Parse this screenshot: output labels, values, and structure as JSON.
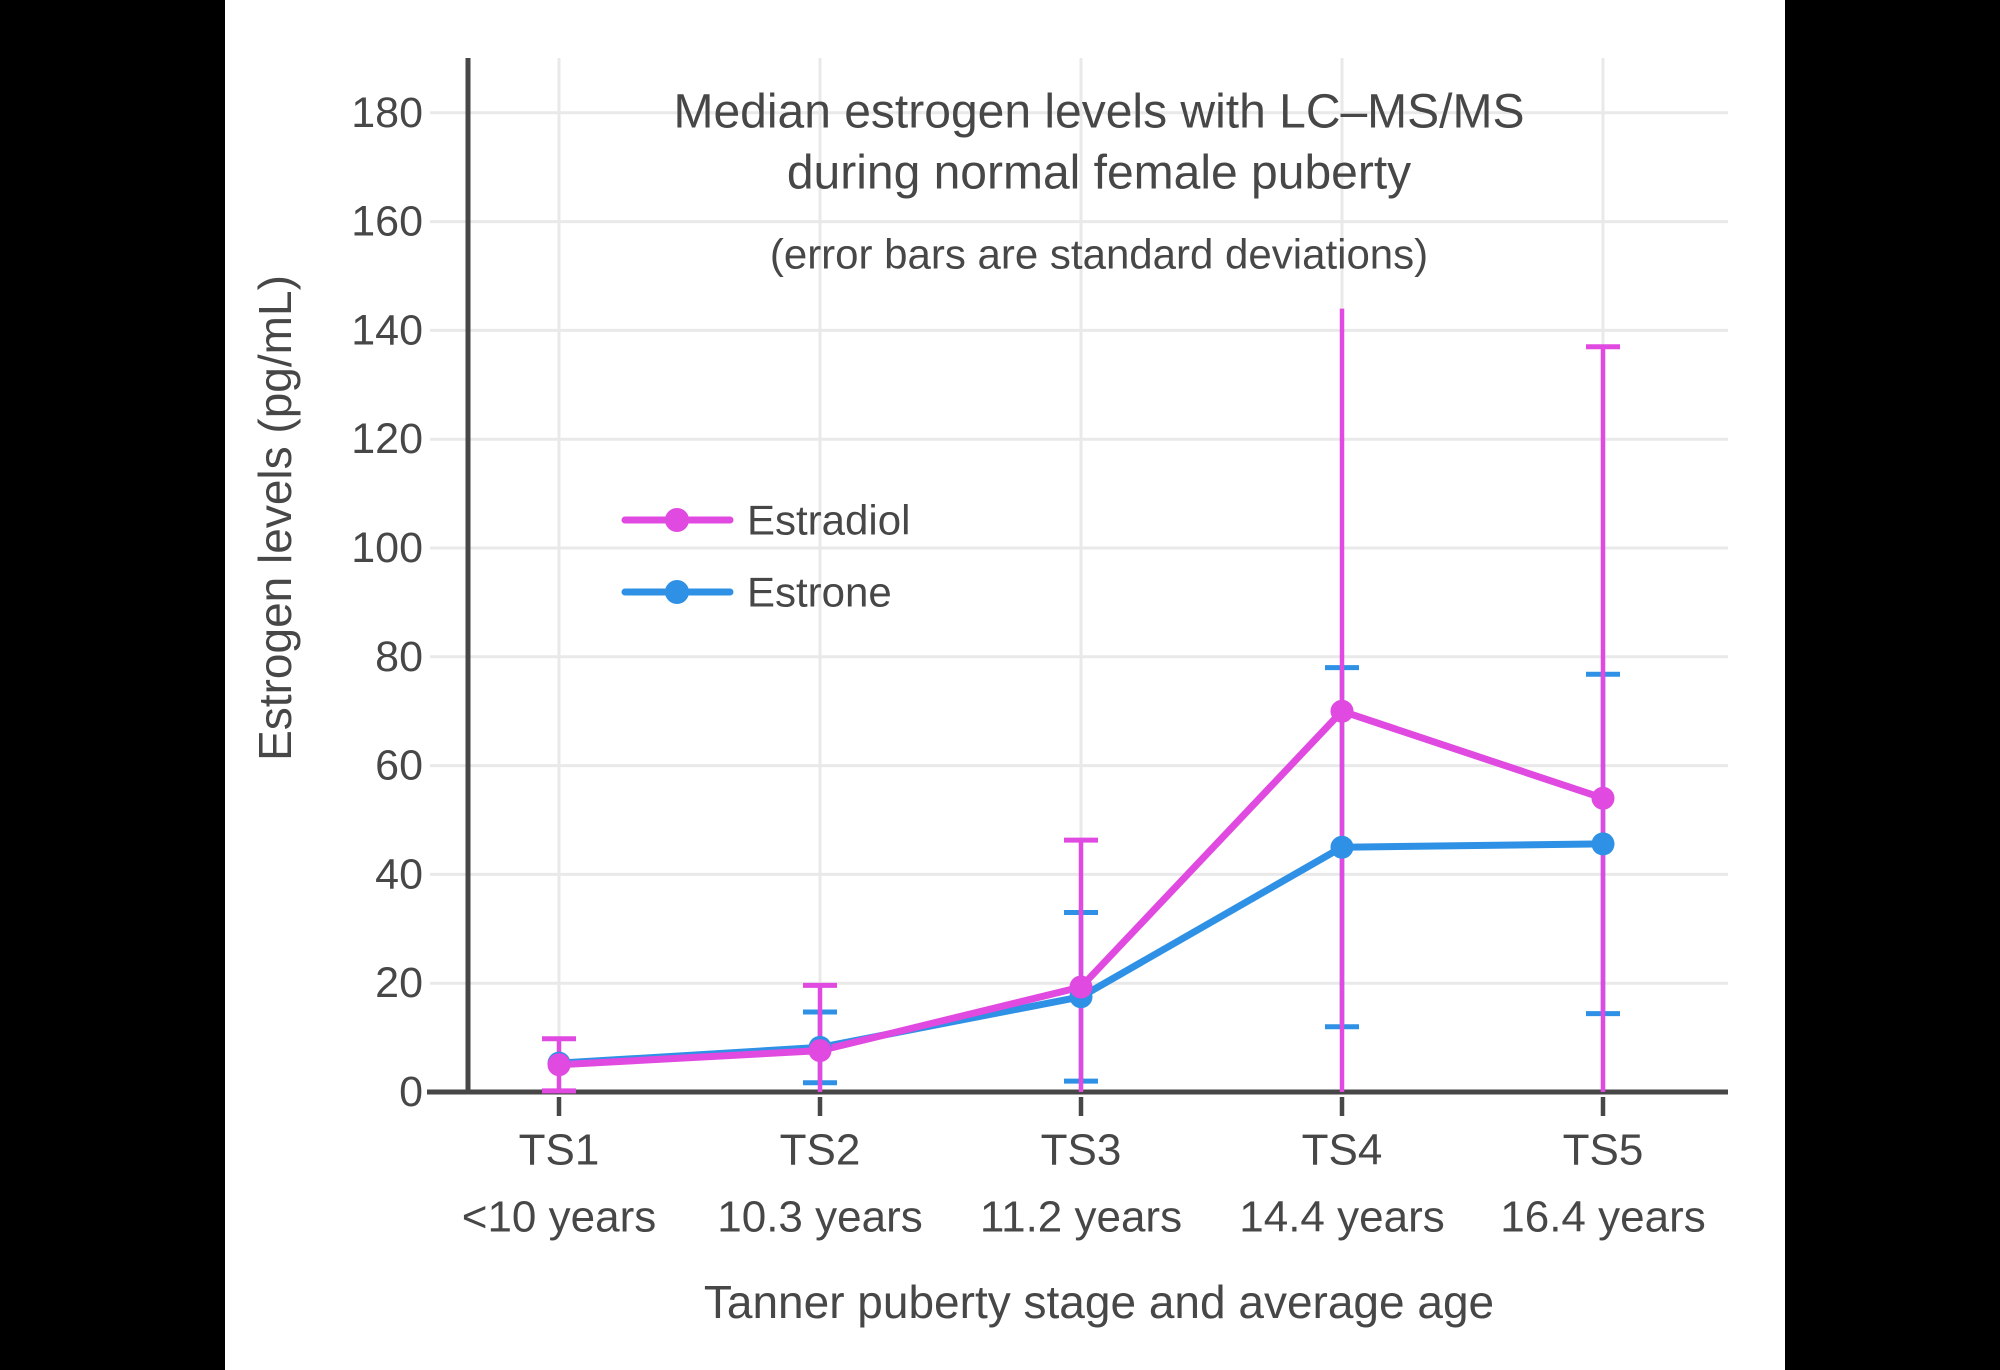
{
  "figure": {
    "background": "#ffffff",
    "letterbox_color": "#000000",
    "text_color": "#474747",
    "grid_color": "#e9e9e9",
    "axis_color": "#474747"
  },
  "chart_data": {
    "type": "line",
    "title_lines": [
      "Median estrogen levels with LC–MS/MS",
      "during normal female puberty"
    ],
    "subtitle": "(error bars are standard deviations)",
    "xlabel": "Tanner puberty stage and average age",
    "ylabel": "Estrogen levels (pg/mL)",
    "categories": [
      "TS1",
      "TS2",
      "TS3",
      "TS4",
      "TS5"
    ],
    "category_ages": [
      "<10 years",
      "10.3 years",
      "11.2 years",
      "14.4 years",
      "16.4 years"
    ],
    "ylim": [
      0,
      190
    ],
    "yticks": [
      0,
      20,
      40,
      60,
      80,
      100,
      120,
      140,
      160,
      180
    ],
    "grid": true,
    "error_bar_note": "standard deviations, clipped at 0",
    "legend": {
      "position": "inside-upper-left",
      "entries": [
        "Estradiol",
        "Estrone"
      ]
    },
    "series": [
      {
        "name": "Estradiol",
        "color": "#E04AE0",
        "values": [
          5,
          7.6,
          19.3,
          70,
          54
        ],
        "sd": [
          4.8,
          12,
          27,
          74,
          83
        ],
        "cap_top": [
          1,
          1,
          1,
          0,
          1
        ]
      },
      {
        "name": "Estrone",
        "color": "#2E91E5",
        "values": [
          5.3,
          8.2,
          17.5,
          45,
          45.6
        ],
        "sd": [
          0,
          6.5,
          15.5,
          33,
          31.2
        ],
        "cap_top": [
          0,
          1,
          1,
          1,
          1
        ]
      }
    ]
  }
}
